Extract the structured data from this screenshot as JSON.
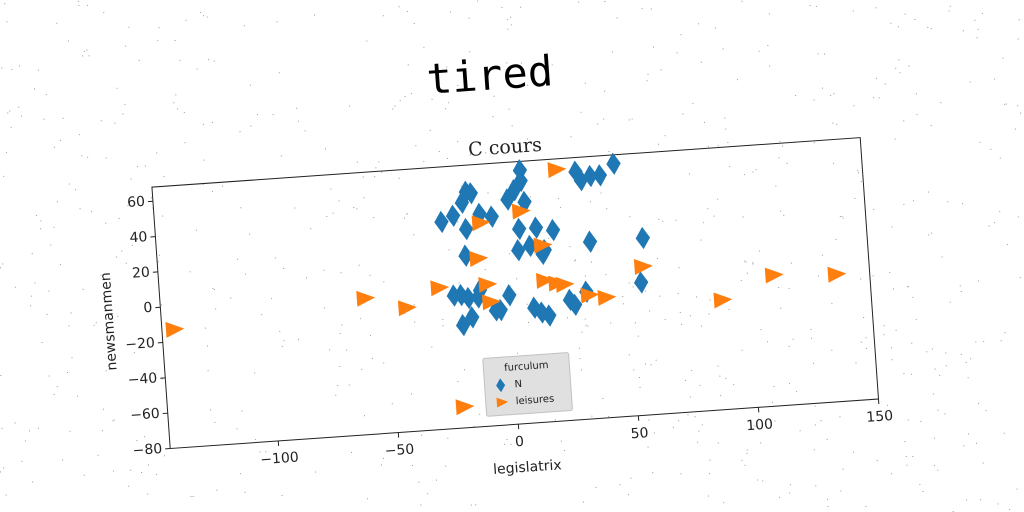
{
  "chart_data": {
    "type": "scatter",
    "title": "C cours",
    "heading": "tired",
    "xlabel": "legislatrix",
    "ylabel": "newsmanmen",
    "xlim": [
      -145,
      150
    ],
    "xticks": [
      {
        "value": -100,
        "label": "−100"
      },
      {
        "value": -50,
        "label": "−50"
      },
      0,
      50,
      100,
      150
    ],
    "ylim": [
      -80,
      68
    ],
    "yticks": [
      {
        "value": -80,
        "label": "−80"
      },
      {
        "value": -60,
        "label": "−60"
      },
      {
        "value": -40,
        "label": "−40"
      },
      {
        "value": -20,
        "label": "−20"
      },
      0,
      20,
      40,
      60
    ],
    "legend_title": "furculum",
    "legend_position": "lower center",
    "series": [
      {
        "name": "N",
        "color": "#1f77b4",
        "marker": "diamond",
        "x": [
          8,
          5,
          8,
          2,
          9,
          -15,
          -13,
          -17,
          -21,
          -26,
          -10,
          -16,
          -5,
          6,
          13,
          20,
          10,
          16,
          5,
          15,
          -17,
          37,
          31,
          33,
          41,
          47,
          35,
          57,
          55,
          -20,
          -23,
          -17,
          -13,
          -12,
          -4,
          -6,
          0,
          10,
          13,
          16,
          25,
          27,
          32,
          -20,
          -16
        ],
        "y": [
          63,
          52,
          57,
          47,
          45,
          53,
          52,
          47,
          40,
          37,
          40,
          32,
          38,
          30,
          30,
          28,
          20,
          17,
          18,
          15,
          17,
          57,
          60,
          55,
          57,
          63,
          20,
          20,
          -5,
          -5,
          -5,
          -7,
          -7,
          -3,
          -15,
          -15,
          -7,
          -15,
          -18,
          -20,
          -12,
          -15,
          -8,
          -22,
          -18
        ]
      },
      {
        "name": "leisures",
        "color": "#ff7f0e",
        "marker": "triangle-right",
        "x": [
          -140,
          -60,
          -43,
          -29,
          -10,
          -12,
          -9,
          -8,
          7,
          15,
          23,
          15,
          20,
          23,
          33,
          40,
          56,
          88,
          110,
          136,
          -22
        ],
        "y": [
          -13,
          -3,
          -10,
          0,
          35,
          15,
          0,
          -10,
          40,
          20,
          62,
          0,
          -2,
          -3,
          -10,
          -12,
          4,
          -18,
          -6,
          -8,
          -68
        ]
      }
    ]
  }
}
